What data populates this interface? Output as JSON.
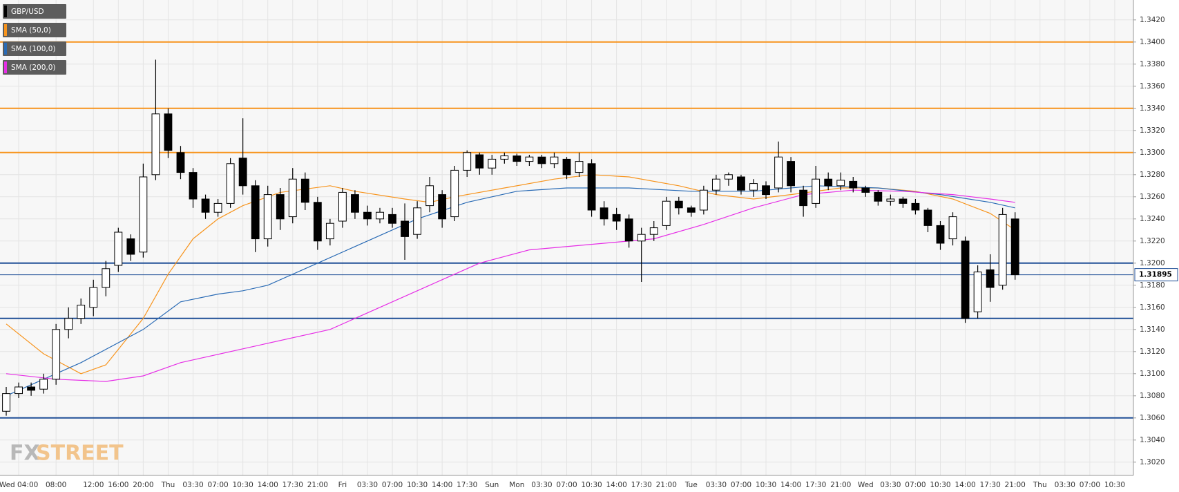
{
  "chart_data": {
    "type": "candlestick",
    "categories": [
      null,
      "Wed 04:00",
      null,
      null,
      "08:00",
      null,
      null,
      "12:00",
      null,
      "16:00",
      null,
      "20:00",
      null,
      "Thu",
      null,
      "03:30",
      null,
      "07:00",
      null,
      "10:30",
      null,
      "14:00",
      null,
      "17:30",
      null,
      "21:00",
      null,
      "Fri",
      null,
      "03:30",
      null,
      "07:00",
      null,
      "10:30",
      null,
      "14:00",
      null,
      "17:30",
      null,
      "Sun",
      null,
      "Mon",
      null,
      "03:30",
      null,
      "07:00",
      null,
      "10:30",
      null,
      "14:00",
      null,
      "17:30",
      null,
      "21:00",
      null,
      "Tue",
      null,
      "03:30",
      null,
      "07:00",
      null,
      "10:30",
      null,
      "14:00",
      null,
      "17:30",
      null,
      "21:00",
      null,
      "Wed",
      null,
      "03:30",
      null,
      "07:00",
      null,
      "10:30",
      null,
      "14:00",
      null,
      "17:30",
      null,
      "21:00",
      null,
      "Thu",
      null,
      "03:30",
      null,
      "07:00",
      null,
      "10:30",
      null
    ],
    "candles": {
      "name": "GBP/USD",
      "color": "#000000",
      "up_color": "#ffffff",
      "down_color": "#000000",
      "open": [
        1.3066,
        1.3082,
        1.3088,
        1.3086,
        1.3095,
        1.314,
        1.315,
        1.316,
        1.3178,
        1.3198,
        1.3222,
        1.321,
        1.328,
        1.3335,
        1.33,
        1.3282,
        1.3258,
        1.3246,
        1.3254,
        1.3295,
        1.327,
        1.3222,
        1.3262,
        1.3242,
        1.3276,
        1.3255,
        1.3222,
        1.3238,
        1.3262,
        1.3246,
        1.324,
        1.3244,
        1.3238,
        1.3226,
        1.3252,
        1.3262,
        1.3242,
        1.3284,
        1.3298,
        1.3286,
        1.3294,
        1.3297,
        1.3292,
        1.3296,
        1.329,
        1.3294,
        1.3282,
        1.329,
        1.325,
        1.3244,
        1.324,
        1.322,
        1.3226,
        1.3234,
        1.3256,
        1.325,
        1.3248,
        1.3266,
        1.3276,
        1.3278,
        1.3266,
        1.327,
        1.3268,
        1.3292,
        1.3266,
        1.3254,
        1.3276,
        1.327,
        1.3274,
        1.3268,
        1.3264,
        1.3256,
        1.3258,
        1.3254,
        1.3248,
        1.3234,
        1.3222,
        1.322,
        1.3156,
        1.3194,
        1.318,
        1.324,
        null,
        null,
        null,
        null,
        null,
        null,
        null,
        null,
        null
      ],
      "high": [
        1.3088,
        1.3092,
        1.3092,
        1.31,
        1.3145,
        1.316,
        1.3168,
        1.3185,
        1.3202,
        1.3232,
        1.3226,
        1.329,
        1.3384,
        1.334,
        1.3306,
        1.3286,
        1.3262,
        1.3258,
        1.3295,
        1.3331,
        1.3275,
        1.327,
        1.3268,
        1.3286,
        1.3282,
        1.326,
        1.324,
        1.3268,
        1.3266,
        1.3252,
        1.325,
        1.325,
        1.3254,
        1.3256,
        1.3278,
        1.3266,
        1.3288,
        1.3302,
        1.33,
        1.3298,
        1.33,
        1.3299,
        1.3298,
        1.3298,
        1.33,
        1.3296,
        1.33,
        1.3294,
        1.3256,
        1.325,
        1.3244,
        1.3232,
        1.3238,
        1.326,
        1.326,
        1.3252,
        1.327,
        1.328,
        1.3282,
        1.328,
        1.3276,
        1.3274,
        1.331,
        1.3296,
        1.327,
        1.3288,
        1.3282,
        1.3282,
        1.3278,
        1.327,
        1.3266,
        1.3262,
        1.326,
        1.3258,
        1.325,
        1.3238,
        1.3246,
        1.3224,
        1.3198,
        1.3208,
        1.325,
        1.3246,
        null,
        null,
        null,
        null,
        null,
        null,
        null,
        null,
        null
      ],
      "low": [
        1.3062,
        1.3078,
        1.308,
        1.3082,
        1.309,
        1.3132,
        1.3145,
        1.3152,
        1.317,
        1.3192,
        1.3202,
        1.3205,
        1.3275,
        1.3295,
        1.3276,
        1.325,
        1.324,
        1.3242,
        1.325,
        1.3262,
        1.321,
        1.3215,
        1.323,
        1.3236,
        1.3248,
        1.3212,
        1.3216,
        1.3232,
        1.324,
        1.3234,
        1.3236,
        1.3232,
        1.3203,
        1.3222,
        1.3246,
        1.3232,
        1.3238,
        1.3278,
        1.328,
        1.328,
        1.329,
        1.3288,
        1.3288,
        1.3286,
        1.3286,
        1.3276,
        1.3278,
        1.3242,
        1.3234,
        1.323,
        1.3214,
        1.3183,
        1.322,
        1.323,
        1.3244,
        1.3242,
        1.3244,
        1.3262,
        1.327,
        1.3262,
        1.326,
        1.3258,
        1.3264,
        1.3264,
        1.3242,
        1.325,
        1.3266,
        1.3266,
        1.3264,
        1.326,
        1.3252,
        1.3252,
        1.325,
        1.3244,
        1.3228,
        1.3212,
        1.3216,
        1.3146,
        1.315,
        1.3165,
        1.3176,
        1.3185,
        null,
        null,
        null,
        null,
        null,
        null,
        null,
        null,
        null
      ],
      "close": [
        1.3082,
        1.3088,
        1.3085,
        1.3095,
        1.314,
        1.315,
        1.3162,
        1.3178,
        1.3195,
        1.3228,
        1.3208,
        1.3278,
        1.3335,
        1.3302,
        1.3282,
        1.3258,
        1.3246,
        1.3254,
        1.329,
        1.327,
        1.3222,
        1.3262,
        1.324,
        1.3276,
        1.3255,
        1.322,
        1.3236,
        1.3264,
        1.3246,
        1.324,
        1.3246,
        1.3236,
        1.3224,
        1.325,
        1.327,
        1.324,
        1.3284,
        1.33,
        1.3286,
        1.3294,
        1.3297,
        1.3292,
        1.3296,
        1.329,
        1.3296,
        1.328,
        1.3292,
        1.3248,
        1.324,
        1.3238,
        1.322,
        1.3226,
        1.3232,
        1.3256,
        1.325,
        1.3246,
        1.3266,
        1.3276,
        1.328,
        1.3266,
        1.3272,
        1.3262,
        1.3296,
        1.327,
        1.3252,
        1.3276,
        1.327,
        1.3275,
        1.3268,
        1.3264,
        1.3256,
        1.3258,
        1.3254,
        1.3248,
        1.3234,
        1.3218,
        1.3242,
        1.315,
        1.3192,
        1.3178,
        1.3244,
        1.31895,
        null,
        null,
        null,
        null,
        null,
        null,
        null,
        null,
        null
      ]
    },
    "series": [
      {
        "name": "SMA (50,0)",
        "color": "#f7941d",
        "x": [
          0,
          3,
          6,
          8,
          11,
          13,
          15,
          17,
          19,
          22,
          26,
          28,
          32,
          34,
          36,
          40,
          44,
          47,
          50,
          54,
          57,
          60,
          63,
          67,
          70,
          73,
          76,
          79,
          81
        ],
        "values": [
          1.3145,
          1.3118,
          1.31,
          1.3108,
          1.315,
          1.319,
          1.3222,
          1.324,
          1.3252,
          1.3264,
          1.327,
          1.3265,
          1.3258,
          1.3255,
          1.326,
          1.3268,
          1.3276,
          1.328,
          1.3278,
          1.327,
          1.3262,
          1.3258,
          1.3262,
          1.3268,
          1.3268,
          1.3265,
          1.3258,
          1.3245,
          1.323
        ]
      },
      {
        "name": "SMA (100,0)",
        "color": "#2a6bb5",
        "x": [
          0,
          6,
          11,
          14,
          17,
          19,
          21,
          25,
          29,
          33,
          37,
          41,
          45,
          50,
          55,
          60,
          65,
          70,
          75,
          79,
          81
        ],
        "values": [
          1.308,
          1.311,
          1.314,
          1.3165,
          1.3172,
          1.3175,
          1.318,
          1.32,
          1.322,
          1.324,
          1.3255,
          1.3265,
          1.3268,
          1.3268,
          1.3265,
          1.3265,
          1.327,
          1.3268,
          1.3262,
          1.3255,
          1.325
        ]
      },
      {
        "name": "SMA (200,0)",
        "color": "#e62ee6",
        "x": [
          0,
          4,
          8,
          11,
          14,
          20,
          26,
          30,
          34,
          38,
          42,
          48,
          52,
          56,
          60,
          64,
          68,
          72,
          76,
          79,
          81
        ],
        "values": [
          1.31,
          1.3095,
          1.3093,
          1.3098,
          1.311,
          1.3125,
          1.314,
          1.316,
          1.318,
          1.32,
          1.3212,
          1.3218,
          1.3222,
          1.3235,
          1.325,
          1.3262,
          1.3266,
          1.3265,
          1.3262,
          1.3258,
          1.3255
        ]
      }
    ],
    "levels": [
      {
        "value": 1.34,
        "color": "#f7941d"
      },
      {
        "value": 1.334,
        "color": "#f7941d"
      },
      {
        "value": 1.33,
        "color": "#f7941d"
      },
      {
        "value": 1.32,
        "color": "#1f4e96"
      },
      {
        "value": 1.315,
        "color": "#1f4e96"
      },
      {
        "value": 1.306,
        "color": "#1f4e96"
      }
    ],
    "last_price": 1.31895,
    "ylim": [
      1.3008,
      1.3438
    ],
    "yticks": [
      {
        "value": 1.302,
        "label": "1.3020"
      },
      {
        "value": 1.304,
        "label": "1.3040"
      },
      {
        "value": 1.306,
        "label": "1.3060"
      },
      {
        "value": 1.308,
        "label": "1.3080"
      },
      {
        "value": 1.31,
        "label": "1.3100"
      },
      {
        "value": 1.312,
        "label": "1.3120"
      },
      {
        "value": 1.314,
        "label": "1.3140"
      },
      {
        "value": 1.316,
        "label": "1.3160"
      },
      {
        "value": 1.318,
        "label": "1.3180"
      },
      {
        "value": 1.32,
        "label": "1.3200"
      },
      {
        "value": 1.322,
        "label": "1.3220"
      },
      {
        "value": 1.324,
        "label": "1.3240"
      },
      {
        "value": 1.326,
        "label": "1.3260"
      },
      {
        "value": 1.328,
        "label": "1.3280"
      },
      {
        "value": 1.33,
        "label": "1.3300"
      },
      {
        "value": 1.332,
        "label": "1.3320"
      },
      {
        "value": 1.334,
        "label": "1.3340"
      },
      {
        "value": 1.336,
        "label": "1.3360"
      },
      {
        "value": 1.338,
        "label": "1.3380"
      },
      {
        "value": 1.34,
        "label": "1.3400"
      },
      {
        "value": 1.342,
        "label": "1.3420"
      }
    ],
    "grid": true,
    "watermark": [
      "FX",
      "STREET"
    ]
  }
}
